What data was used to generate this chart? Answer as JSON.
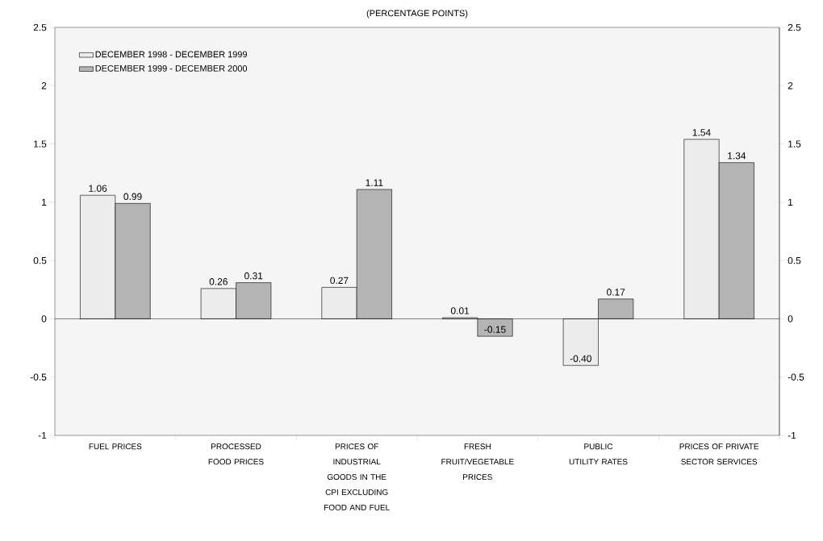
{
  "chart_data": {
    "type": "bar",
    "subtitle": "(PERCENTAGE POINTS)",
    "categories": [
      "FUEL PRICES",
      "PROCESSED FOOD PRICES",
      "PRICES OF INDUSTRIAL GOODS IN THE CPI EXCLUDING FOOD AND FUEL",
      "FRESH FRUIT/VEGETABLE PRICES",
      "PUBLIC UTILITY RATES",
      "PRICES OF PRIVATE SECTOR SERVICES"
    ],
    "series": [
      {
        "name": "DECEMBER  1998 - DECEMBER  1999",
        "color": "#ececec",
        "values": [
          1.06,
          0.26,
          0.27,
          0.01,
          -0.4,
          1.54
        ],
        "value_labels": [
          "1.06",
          "0.26",
          "0.27",
          "0.01",
          "-0.40",
          "1.54"
        ]
      },
      {
        "name": "DECEMBER  1999 - DECEMBER  2000",
        "color": "#b4b4b4",
        "values": [
          0.99,
          0.31,
          1.11,
          -0.15,
          0.17,
          1.34
        ],
        "value_labels": [
          "0.99",
          "0.31",
          "1.11",
          "-0.15",
          "0.17",
          "1.34"
        ]
      }
    ],
    "ylim": [
      -1,
      2.5
    ],
    "yticks": [
      -1,
      -0.5,
      0,
      0.5,
      1,
      1.5,
      2,
      2.5
    ],
    "y2lim": [
      -1,
      2.5
    ],
    "y2ticks": [
      -1,
      -0.5,
      0,
      0.5,
      1,
      1.5,
      2,
      2.5
    ],
    "ref_lines": [
      {
        "axis": "y",
        "value": 0
      }
    ],
    "legend": "top left"
  }
}
